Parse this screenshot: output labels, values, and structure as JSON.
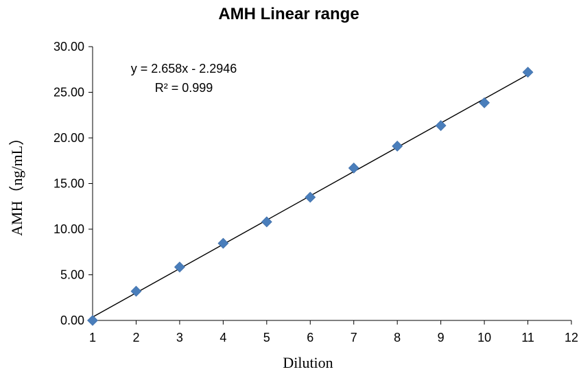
{
  "chart_data": {
    "type": "scatter",
    "title": "AMH Linear range",
    "xlabel": "Dilution",
    "ylabel": "AMH（ng/mL）",
    "xlim": [
      1,
      12
    ],
    "ylim": [
      0,
      30
    ],
    "x_ticks": [
      "1",
      "2",
      "3",
      "4",
      "5",
      "6",
      "7",
      "8",
      "9",
      "10",
      "11",
      "12"
    ],
    "y_ticks": [
      "0.00",
      "5.00",
      "10.00",
      "15.00",
      "20.00",
      "25.00",
      "30.00"
    ],
    "grid": false,
    "marker": "diamond",
    "marker_color": "#4a7ebb",
    "trendline_color": "#000000",
    "series": [
      {
        "x": [
          1,
          2,
          3,
          4,
          5,
          6,
          7,
          8,
          9,
          10,
          11
        ],
        "y": [
          0.0,
          3.2,
          5.85,
          8.45,
          10.8,
          13.5,
          16.7,
          19.1,
          21.35,
          23.85,
          27.2
        ]
      }
    ],
    "trendline": {
      "slope": 2.658,
      "intercept": -2.2946
    },
    "annotations": {
      "equation": "y = 2.658x - 2.2946",
      "r_squared": "R² = 0.999"
    }
  }
}
